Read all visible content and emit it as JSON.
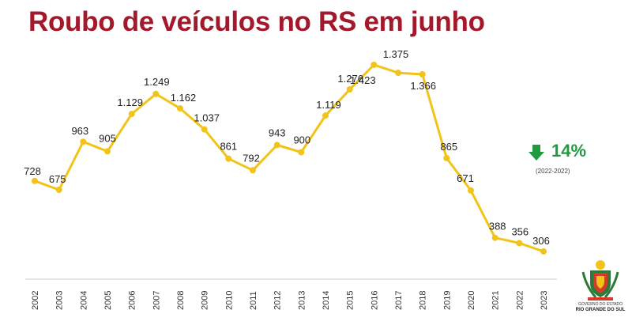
{
  "chart_data": {
    "type": "line",
    "title": "Roubo de veículos no RS em junho",
    "categories": [
      "2002",
      "2003",
      "2004",
      "2005",
      "2006",
      "2007",
      "2008",
      "2009",
      "2010",
      "2011",
      "2012",
      "2013",
      "2014",
      "2015",
      "2016",
      "2017",
      "2018",
      "2019",
      "2020",
      "2021",
      "2022",
      "2023"
    ],
    "values": [
      728,
      675,
      963,
      905,
      1129,
      1249,
      1162,
      1037,
      861,
      792,
      943,
      900,
      1119,
      1276,
      1423,
      1375,
      1366,
      865,
      671,
      388,
      356,
      306
    ],
    "value_labels": [
      "728",
      "675",
      "963",
      "905",
      "1.129",
      "1.249",
      "1.162",
      "1.037",
      "861",
      "792",
      "943",
      "900",
      "1.119",
      "1.276",
      "1.423",
      "1.375",
      "1.366",
      "865",
      "671",
      "388",
      "356",
      "306"
    ],
    "ylim": [
      0,
      1500
    ],
    "grid": false,
    "legend": "none",
    "line_color": "#f2c318",
    "marker_color": "#f2c318"
  },
  "annotation": {
    "change_value": "14%",
    "period": "(2022-2022)",
    "arrow_icon": "arrow-down-icon",
    "color": "#1f9a3e"
  },
  "logo": {
    "line1": "GOVERNO DO ESTADO",
    "line2": "RIO GRANDE DO SUL",
    "icon": "state-coat-of-arms-icon"
  },
  "colors": {
    "title": "#a3182a",
    "axis": "#cccccc"
  }
}
